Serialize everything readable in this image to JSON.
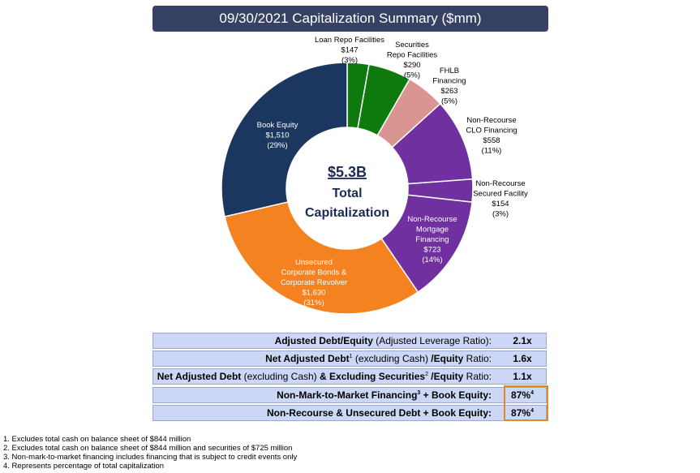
{
  "title": "09/30/2021 Capitalization Summary ($mm)",
  "chart_data": {
    "type": "pie",
    "hole": true,
    "center": {
      "line1": "$5.3B",
      "line2": "Total",
      "line3": "Capitalization"
    },
    "slices": [
      {
        "name": "Loan Repo Facilities",
        "value": 147,
        "value_label": "$147",
        "pct_label": "(3%)",
        "color": "#0e7a0d"
      },
      {
        "name": "Securities Repo Facilities",
        "value": 290,
        "value_label": "$290",
        "pct_label": "(5%)",
        "color": "#0e7a0d"
      },
      {
        "name": "FHLB Financing",
        "value": 263,
        "value_label": "$263",
        "pct_label": "(5%)",
        "color": "#d99592"
      },
      {
        "name": "Non-Recourse CLO Financing",
        "value": 558,
        "value_label": "$558",
        "pct_label": "(11%)",
        "color": "#7030a0"
      },
      {
        "name": "Non-Recourse Secured Facility",
        "value": 154,
        "value_label": "$154",
        "pct_label": "(3%)",
        "color": "#7030a0"
      },
      {
        "name": "Non-Recourse Mortgage Financing",
        "value": 723,
        "value_label": "$723",
        "pct_label": "(14%)",
        "color": "#7030a0"
      },
      {
        "name": "Unsecured Corporate Bonds & Corporate Revolver",
        "value": 1630,
        "value_label": "$1,630",
        "pct_label": "(31%)",
        "color": "#f58220"
      },
      {
        "name": "Book Equity",
        "value": 1510,
        "value_label": "$1,510",
        "pct_label": "(29%)",
        "color": "#1c375f"
      }
    ]
  },
  "metrics": [
    {
      "bold": "Adjusted Debt/Equity",
      "rest": " (Adjusted Leverage Ratio):",
      "value": "2.1x"
    },
    {
      "bold": "Net Adjusted Debt",
      "sup": "1",
      "rest": " (excluding Cash) ",
      "bold2": "/Equity",
      "rest2": " Ratio:",
      "value": "1.6x"
    },
    {
      "bold": "Net Adjusted Debt",
      "rest": " (excluding Cash) ",
      "bold2": "& Excluding Securities",
      "sup2": "2",
      "bold3": " /Equity",
      "rest3": " Ratio:",
      "value": "1.1x"
    },
    {
      "bold": "Non-Mark-to-Market Financing",
      "sup": "3",
      "bold2": " + Book Equity:",
      "value": "87%",
      "value_sup": "4"
    },
    {
      "bold": "Non-Recourse & Unsecured Debt + Book Equity:",
      "value": "87%",
      "value_sup": "4"
    }
  ],
  "footnotes": [
    "1. Excludes total cash on balance sheet of $844 million",
    "2. Excludes total cash on balance sheet of $844 million and securities of $725 million",
    "3. Non-mark-to-market financing includes financing that is subject to credit events only",
    "4. Represents percentage of total capitalization"
  ]
}
